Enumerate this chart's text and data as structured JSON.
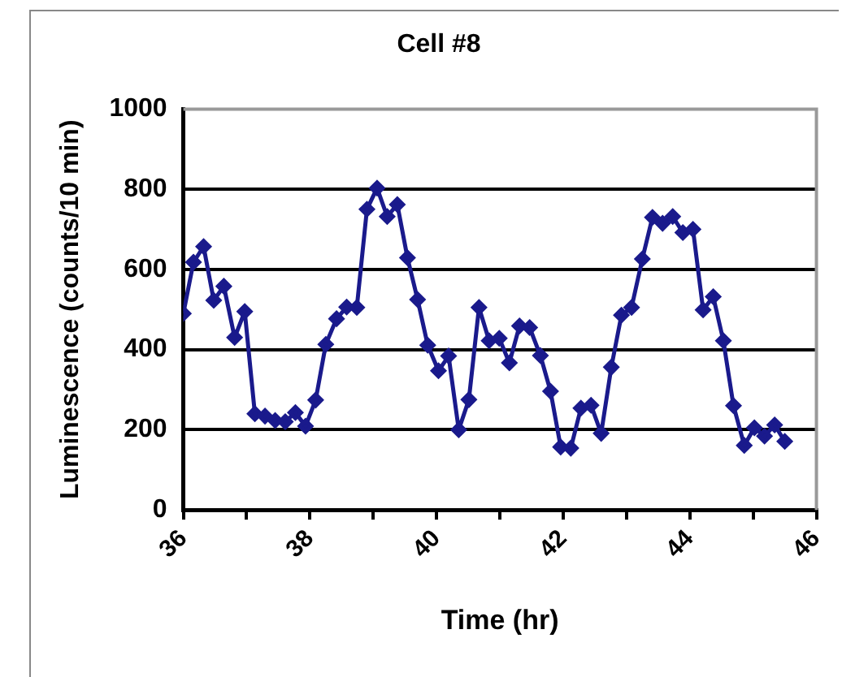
{
  "chart_data": {
    "type": "line",
    "title": "Cell #8",
    "xlabel": "Time (hr)",
    "ylabel": "Luminescence (counts/10 min)",
    "x": [
      36.0,
      36.16,
      36.32,
      36.48,
      36.64,
      36.81,
      36.97,
      37.13,
      37.29,
      37.45,
      37.61,
      37.77,
      37.93,
      38.09,
      38.25,
      38.42,
      38.58,
      38.74,
      38.9,
      39.06,
      39.22,
      39.38,
      39.54,
      39.7,
      39.86,
      40.03,
      40.19,
      40.35,
      40.51,
      40.67,
      40.83,
      40.99,
      41.15,
      41.31,
      41.47,
      41.64,
      41.8,
      41.96,
      42.12,
      42.28,
      42.44,
      42.6,
      42.76,
      42.92,
      43.08,
      43.25,
      43.41,
      43.57,
      43.73,
      43.89,
      44.05,
      44.21,
      44.37,
      44.53,
      44.69,
      44.86,
      45.02,
      45.18,
      45.34,
      45.5
    ],
    "series": [
      {
        "color": "#1a1a8c",
        "values": [
          490,
          618,
          657,
          523,
          558,
          430,
          495,
          240,
          234,
          223,
          220,
          243,
          209,
          274,
          413,
          477,
          506,
          505,
          750,
          803,
          732,
          762,
          629,
          525,
          411,
          347,
          384,
          200,
          275,
          505,
          422,
          428,
          367,
          459,
          455,
          385,
          296,
          157,
          154,
          254,
          261,
          191,
          356,
          486,
          505,
          626,
          730,
          715,
          732,
          692,
          700,
          499,
          532,
          422,
          260,
          161,
          205,
          184,
          212,
          171
        ]
      }
    ],
    "xlim": [
      36,
      46
    ],
    "xticks": [
      36,
      {
        "value": 37,
        "label": null
      },
      38,
      {
        "value": 39,
        "label": null
      },
      40,
      {
        "value": 41,
        "label": null
      },
      42,
      {
        "value": 43,
        "label": null
      },
      44,
      {
        "value": 45,
        "label": null
      },
      46
    ],
    "ylim": [
      0,
      1000
    ],
    "yticks": [
      0,
      200,
      400,
      600,
      800,
      1000
    ],
    "grid": "y",
    "legend": false,
    "marker": "diamond",
    "line_style": "solid"
  }
}
